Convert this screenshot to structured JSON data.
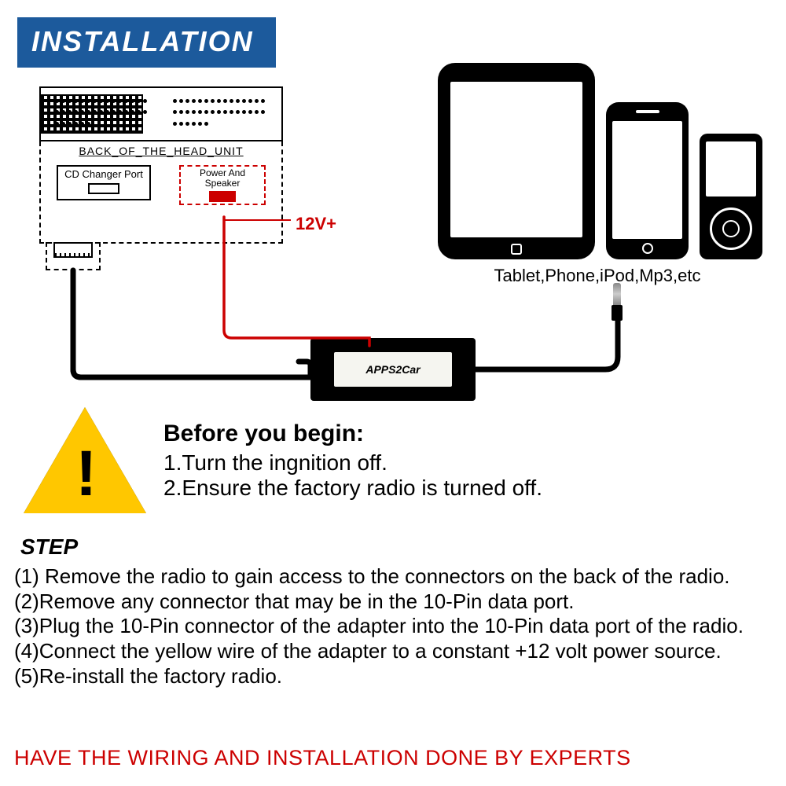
{
  "header": {
    "title": "INSTALLATION"
  },
  "diagram": {
    "head_unit_label": "BACK_OF_THE_HEAD_UNIT",
    "cd_port_label": "CD Changer Port",
    "power_port_label": "Power And Speaker",
    "voltage_label": "12V+",
    "devices_caption": "Tablet,Phone,iPod,Mp3,etc",
    "adapter_brand": "APPS2Car",
    "colors": {
      "banner_bg": "#1c5a9c",
      "banner_fg": "#ffffff",
      "wire_black": "#000000",
      "wire_red": "#cc0000",
      "warning_fill": "#ffc700",
      "footer_color": "#cc0000"
    }
  },
  "warning": {
    "heading": "Before you begin:",
    "items": [
      "1.Turn the ingnition off.",
      "2.Ensure the factory radio is turned off."
    ]
  },
  "steps": {
    "heading": "STEP",
    "list": [
      "(1) Remove the radio to gain access to the connectors on the back of the radio.",
      "(2)Remove any connector that may be in the 10-Pin data port.",
      "(3)Plug the 10-Pin connector of the adapter into the 10-Pin data port of the radio.",
      "(4)Connect the yellow wire of the adapter to a constant +12 volt power source.",
      "(5)Re-install the factory radio."
    ]
  },
  "footer": {
    "note": "HAVE THE WIRING AND INSTALLATION DONE BY EXPERTS"
  }
}
